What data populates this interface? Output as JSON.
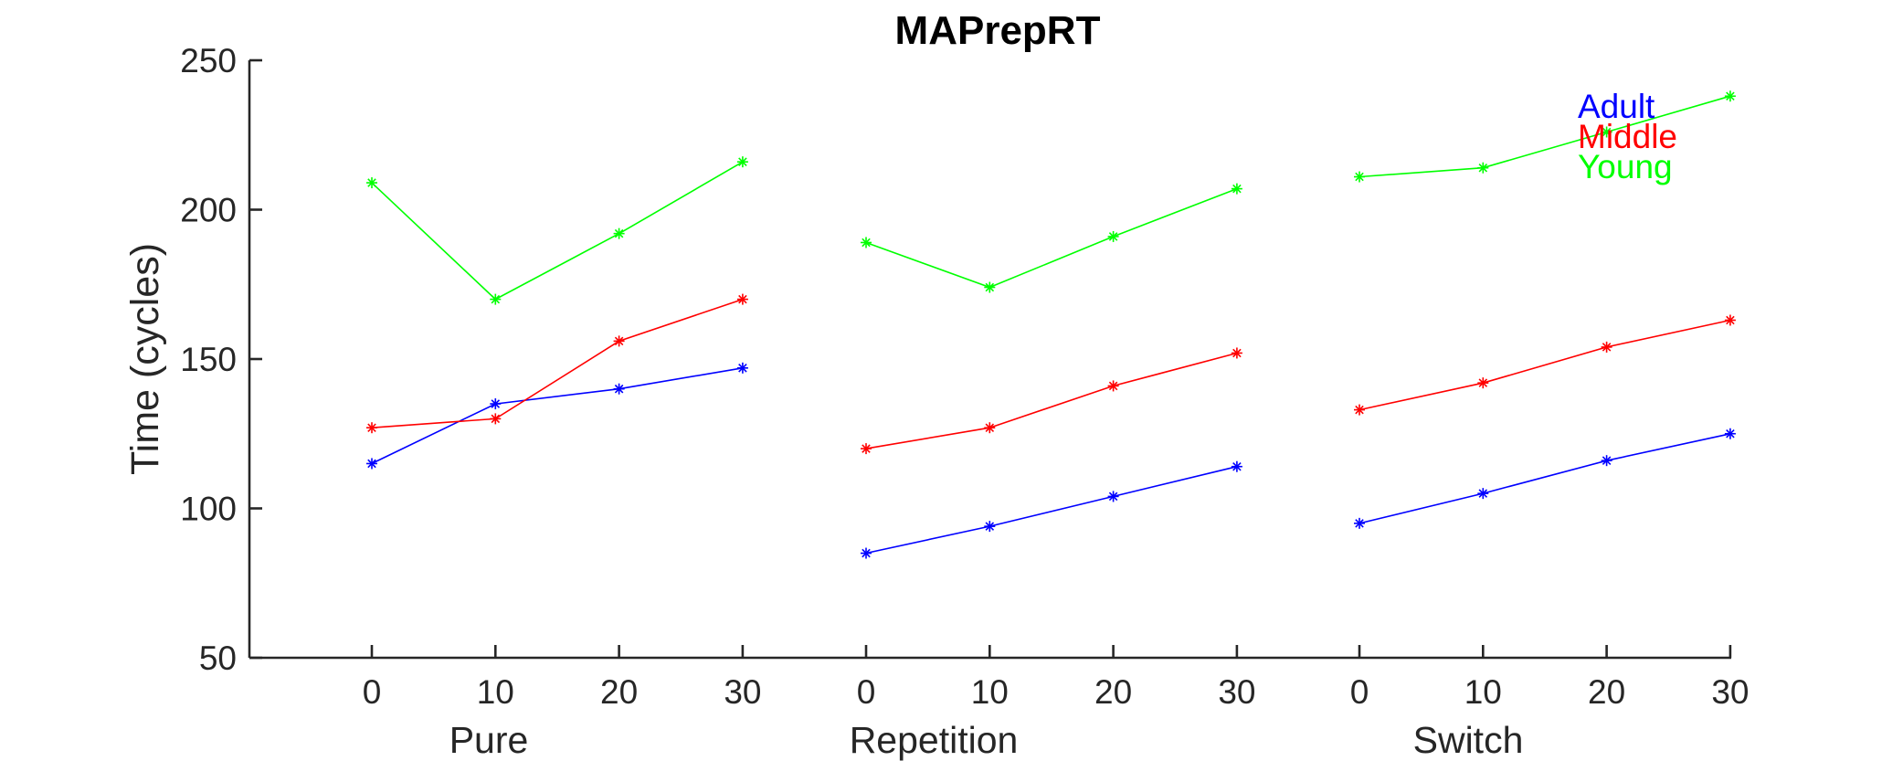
{
  "chart_data": {
    "type": "line",
    "title": "MAPrepRT",
    "xlabel": "",
    "ylabel": "Time (cycles)",
    "ylim": [
      50,
      250
    ],
    "yticks": [
      50,
      100,
      150,
      200,
      250
    ],
    "grid": false,
    "groups": [
      {
        "label": "Pure",
        "x": [
          0,
          10,
          20,
          30
        ]
      },
      {
        "label": "Repetition",
        "x": [
          0,
          10,
          20,
          30
        ]
      },
      {
        "label": "Switch",
        "x": [
          0,
          10,
          20,
          30
        ]
      }
    ],
    "tick_labels": [
      "0",
      "10",
      "20",
      "30"
    ],
    "legend": {
      "placement": "top-right",
      "entries": [
        {
          "name": "Adult",
          "color": "#0000ff"
        },
        {
          "name": "Middle",
          "color": "#ff0000"
        },
        {
          "name": "Young",
          "color": "#00ff00"
        }
      ]
    },
    "series": [
      {
        "name": "Adult",
        "color": "#0000ff",
        "values": [
          [
            115,
            135,
            140,
            147
          ],
          [
            85,
            94,
            104,
            114
          ],
          [
            95,
            105,
            116,
            125
          ]
        ]
      },
      {
        "name": "Middle",
        "color": "#ff0000",
        "values": [
          [
            127,
            130,
            156,
            170
          ],
          [
            120,
            127,
            141,
            152
          ],
          [
            133,
            142,
            154,
            163
          ]
        ]
      },
      {
        "name": "Young",
        "color": "#00ff00",
        "values": [
          [
            209,
            170,
            192,
            216
          ],
          [
            189,
            174,
            191,
            207
          ],
          [
            211,
            214,
            226,
            238
          ]
        ]
      }
    ]
  }
}
